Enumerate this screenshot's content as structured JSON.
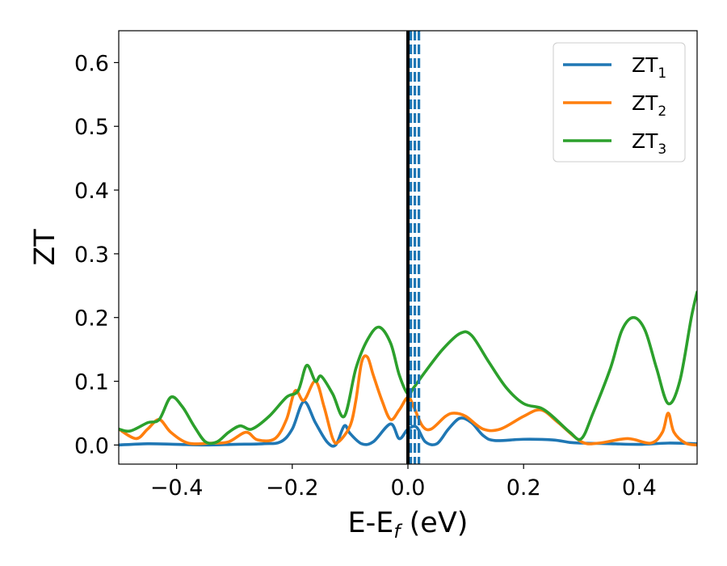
{
  "chart_data": {
    "type": "line",
    "xlabel": "E-E",
    "xlabel_sub": "f",
    "xlabel_unit": " (eV)",
    "ylabel": "ZT",
    "xlim": [
      -0.5,
      0.5
    ],
    "ylim": [
      -0.03,
      0.65
    ],
    "x_ticks": [
      -0.4,
      -0.2,
      0.0,
      0.2,
      0.4
    ],
    "x_tick_labels": [
      "−0.4",
      "−0.2",
      "0.0",
      "0.2",
      "0.4"
    ],
    "y_ticks": [
      0.0,
      0.1,
      0.2,
      0.3,
      0.4,
      0.5,
      0.6
    ],
    "y_tick_labels": [
      "0.0",
      "0.1",
      "0.2",
      "0.3",
      "0.4",
      "0.5",
      "0.6"
    ],
    "grid": false,
    "legend_position": "top-right",
    "vertical_lines": [
      {
        "x": 0.0,
        "style": "solid",
        "color": "#000000"
      },
      {
        "x": 0.005,
        "style": "dashed",
        "color": "#1f77b4"
      },
      {
        "x": 0.012,
        "style": "dashed",
        "color": "#1f77b4"
      },
      {
        "x": 0.019,
        "style": "dashed",
        "color": "#1f77b4"
      }
    ],
    "series": [
      {
        "name": "ZT",
        "sub": "1",
        "color": "#1f77b4",
        "points": [
          [
            -0.5,
            0.0
          ],
          [
            -0.45,
            0.002
          ],
          [
            -0.4,
            0.001
          ],
          [
            -0.35,
            0.0
          ],
          [
            -0.3,
            0.001
          ],
          [
            -0.25,
            0.002
          ],
          [
            -0.22,
            0.005
          ],
          [
            -0.2,
            0.025
          ],
          [
            -0.18,
            0.068
          ],
          [
            -0.16,
            0.035
          ],
          [
            -0.14,
            0.005
          ],
          [
            -0.125,
            0.0
          ],
          [
            -0.11,
            0.03
          ],
          [
            -0.1,
            0.018
          ],
          [
            -0.08,
            0.002
          ],
          [
            -0.06,
            0.005
          ],
          [
            -0.03,
            0.033
          ],
          [
            -0.015,
            0.01
          ],
          [
            0.0,
            0.025
          ],
          [
            0.015,
            0.028
          ],
          [
            0.03,
            0.005
          ],
          [
            0.05,
            0.002
          ],
          [
            0.07,
            0.025
          ],
          [
            0.09,
            0.042
          ],
          [
            0.11,
            0.035
          ],
          [
            0.13,
            0.015
          ],
          [
            0.15,
            0.007
          ],
          [
            0.2,
            0.009
          ],
          [
            0.25,
            0.008
          ],
          [
            0.28,
            0.004
          ],
          [
            0.3,
            0.003
          ],
          [
            0.35,
            0.002
          ],
          [
            0.4,
            0.001
          ],
          [
            0.45,
            0.003
          ],
          [
            0.5,
            0.002
          ]
        ]
      },
      {
        "name": "ZT",
        "sub": "2",
        "color": "#ff7f0e",
        "points": [
          [
            -0.5,
            0.025
          ],
          [
            -0.47,
            0.01
          ],
          [
            -0.45,
            0.025
          ],
          [
            -0.43,
            0.04
          ],
          [
            -0.41,
            0.02
          ],
          [
            -0.38,
            0.003
          ],
          [
            -0.34,
            0.003
          ],
          [
            -0.31,
            0.005
          ],
          [
            -0.28,
            0.02
          ],
          [
            -0.26,
            0.008
          ],
          [
            -0.23,
            0.01
          ],
          [
            -0.21,
            0.04
          ],
          [
            -0.195,
            0.085
          ],
          [
            -0.18,
            0.07
          ],
          [
            -0.16,
            0.1
          ],
          [
            -0.145,
            0.06
          ],
          [
            -0.13,
            0.01
          ],
          [
            -0.12,
            0.005
          ],
          [
            -0.1,
            0.03
          ],
          [
            -0.09,
            0.07
          ],
          [
            -0.08,
            0.13
          ],
          [
            -0.07,
            0.138
          ],
          [
            -0.06,
            0.11
          ],
          [
            -0.045,
            0.07
          ],
          [
            -0.03,
            0.04
          ],
          [
            -0.015,
            0.055
          ],
          [
            0.0,
            0.075
          ],
          [
            0.01,
            0.06
          ],
          [
            0.025,
            0.03
          ],
          [
            0.04,
            0.025
          ],
          [
            0.065,
            0.045
          ],
          [
            0.08,
            0.05
          ],
          [
            0.1,
            0.045
          ],
          [
            0.13,
            0.025
          ],
          [
            0.16,
            0.025
          ],
          [
            0.2,
            0.045
          ],
          [
            0.23,
            0.055
          ],
          [
            0.26,
            0.035
          ],
          [
            0.3,
            0.005
          ],
          [
            0.33,
            0.003
          ],
          [
            0.38,
            0.01
          ],
          [
            0.42,
            0.003
          ],
          [
            0.44,
            0.02
          ],
          [
            0.45,
            0.05
          ],
          [
            0.46,
            0.02
          ],
          [
            0.48,
            0.003
          ],
          [
            0.5,
            0.0
          ]
        ]
      },
      {
        "name": "ZT",
        "sub": "3",
        "color": "#2ca02c",
        "points": [
          [
            -0.5,
            0.025
          ],
          [
            -0.48,
            0.022
          ],
          [
            -0.45,
            0.035
          ],
          [
            -0.43,
            0.04
          ],
          [
            -0.41,
            0.075
          ],
          [
            -0.39,
            0.06
          ],
          [
            -0.37,
            0.03
          ],
          [
            -0.35,
            0.005
          ],
          [
            -0.33,
            0.005
          ],
          [
            -0.31,
            0.02
          ],
          [
            -0.29,
            0.03
          ],
          [
            -0.27,
            0.025
          ],
          [
            -0.24,
            0.045
          ],
          [
            -0.21,
            0.075
          ],
          [
            -0.19,
            0.085
          ],
          [
            -0.175,
            0.125
          ],
          [
            -0.16,
            0.1
          ],
          [
            -0.15,
            0.108
          ],
          [
            -0.13,
            0.08
          ],
          [
            -0.11,
            0.045
          ],
          [
            -0.09,
            0.12
          ],
          [
            -0.07,
            0.165
          ],
          [
            -0.05,
            0.185
          ],
          [
            -0.03,
            0.16
          ],
          [
            -0.015,
            0.11
          ],
          [
            0.0,
            0.08
          ],
          [
            0.01,
            0.09
          ],
          [
            0.03,
            0.115
          ],
          [
            0.06,
            0.15
          ],
          [
            0.09,
            0.175
          ],
          [
            0.11,
            0.172
          ],
          [
            0.14,
            0.13
          ],
          [
            0.17,
            0.09
          ],
          [
            0.2,
            0.065
          ],
          [
            0.23,
            0.058
          ],
          [
            0.25,
            0.045
          ],
          [
            0.28,
            0.02
          ],
          [
            0.3,
            0.01
          ],
          [
            0.32,
            0.05
          ],
          [
            0.35,
            0.12
          ],
          [
            0.37,
            0.18
          ],
          [
            0.39,
            0.2
          ],
          [
            0.41,
            0.18
          ],
          [
            0.43,
            0.12
          ],
          [
            0.45,
            0.065
          ],
          [
            0.47,
            0.1
          ],
          [
            0.49,
            0.2
          ],
          [
            0.5,
            0.24
          ]
        ]
      }
    ]
  }
}
